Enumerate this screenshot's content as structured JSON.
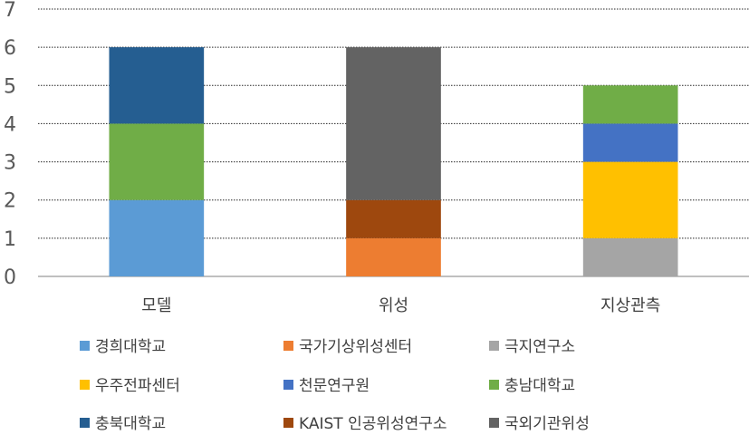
{
  "chart_data": {
    "type": "bar",
    "stacked": true,
    "categories": [
      "모델",
      "위성",
      "지상관측"
    ],
    "ylim": [
      0,
      7
    ],
    "yticks": [
      0,
      1,
      2,
      3,
      4,
      5,
      6,
      7
    ],
    "grid": true,
    "legend_position": "bottom",
    "series": [
      {
        "name": "경희대학교",
        "color": "#5B9BD5",
        "values": [
          2,
          0,
          0
        ]
      },
      {
        "name": "국가기상위성센터",
        "color": "#ED7D31",
        "values": [
          0,
          1,
          0
        ]
      },
      {
        "name": "극지연구소",
        "color": "#A5A5A5",
        "values": [
          0,
          0,
          1
        ]
      },
      {
        "name": "우주전파센터",
        "color": "#FFC000",
        "values": [
          0,
          0,
          2
        ]
      },
      {
        "name": "천문연구원",
        "color": "#4472C4",
        "values": [
          0,
          0,
          1
        ]
      },
      {
        "name": "충남대학교",
        "color": "#70AD47",
        "values": [
          2,
          0,
          1
        ]
      },
      {
        "name": "충북대학교",
        "color": "#255E91",
        "values": [
          2,
          0,
          0
        ]
      },
      {
        "name": "KAIST 인공위성연구소",
        "color": "#9E480E",
        "values": [
          0,
          1,
          0
        ]
      },
      {
        "name": "국외기관위성",
        "color": "#636363",
        "values": [
          0,
          4,
          0
        ]
      }
    ]
  }
}
